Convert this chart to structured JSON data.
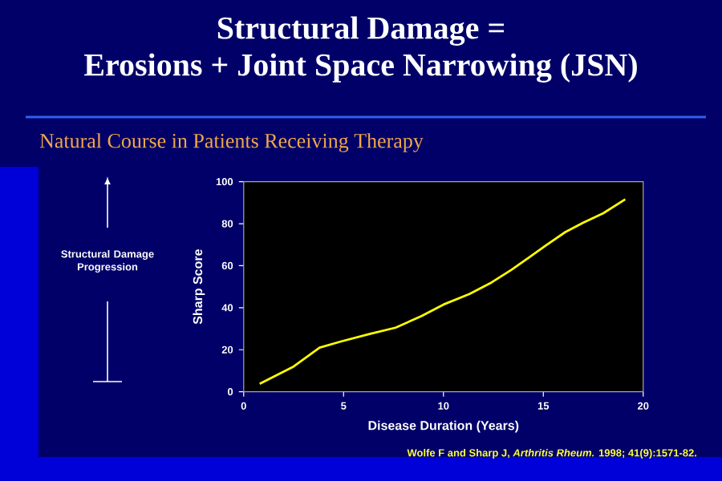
{
  "chart_data": {
    "type": "line",
    "title": "Structural Damage = Erosions + Joint Space Narrowing (JSN)",
    "subtitle": "Natural Course in Patients Receiving Therapy",
    "xlabel": "Disease Duration (Years)",
    "ylabel": "Sharp Score",
    "annotations": [
      "Structural Damage Progression",
      "Wolfe F and Sharp J, *Arthritis Rheum.* 1998; 41(9):1571-82."
    ],
    "x": [
      0.8,
      2.5,
      3.8,
      4.9,
      6.3,
      7.6,
      8.9,
      10.0,
      11.3,
      12.4,
      13.4,
      14.3,
      15.1,
      16.1,
      17.0,
      18.0,
      19.1
    ],
    "series": [
      {
        "color": "#ffff00",
        "values": [
          3.8,
          12,
          21,
          24,
          27.5,
          30.5,
          36,
          41.5,
          46.5,
          52,
          58,
          64,
          69.5,
          76,
          80.5,
          85,
          91.6
        ]
      }
    ],
    "xlim": [
      0,
      20
    ],
    "ylim": [
      0,
      100
    ],
    "xticks": [
      0,
      5,
      10,
      15,
      20
    ],
    "yticks": [
      0,
      20,
      40,
      60,
      80,
      100
    ],
    "grid": false,
    "marker": "none",
    "line_style": "solid"
  }
}
